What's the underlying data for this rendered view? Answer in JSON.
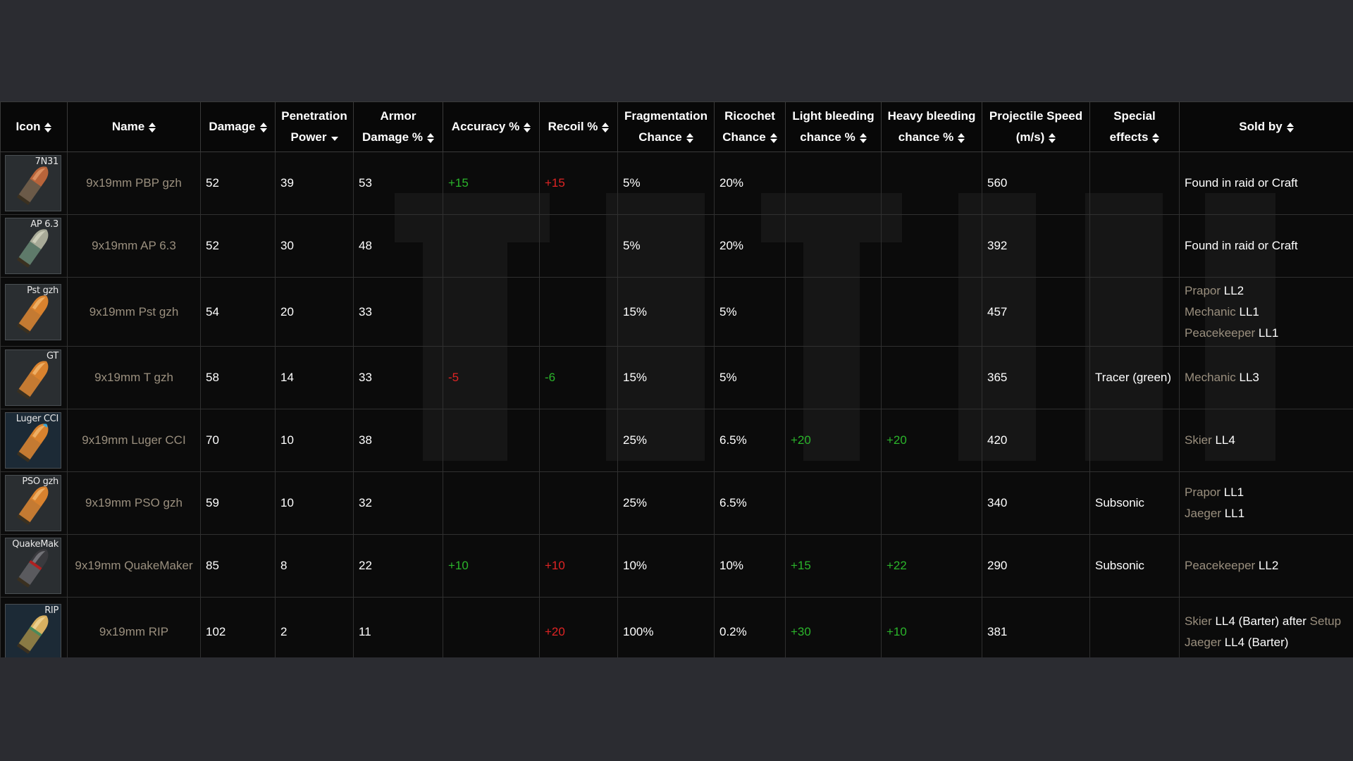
{
  "headers": [
    {
      "line1": "Icon",
      "line2": "",
      "sort": "both"
    },
    {
      "line1": "Name",
      "line2": "",
      "sort": "both"
    },
    {
      "line1": "Damage",
      "line2": "",
      "sort": "both"
    },
    {
      "line1": "Penetration",
      "line2": "Power",
      "sort": "down"
    },
    {
      "line1": "Armor",
      "line2": "Damage %",
      "sort": "both"
    },
    {
      "line1": "Accuracy %",
      "line2": "",
      "sort": "both"
    },
    {
      "line1": "Recoil %",
      "line2": "",
      "sort": "both"
    },
    {
      "line1": "Fragmentation",
      "line2": "Chance",
      "sort": "both"
    },
    {
      "line1": "Ricochet",
      "line2": "Chance",
      "sort": "both"
    },
    {
      "line1": "Light bleeding",
      "line2": "chance %",
      "sort": "both"
    },
    {
      "line1": "Heavy bleeding",
      "line2": "chance %",
      "sort": "both"
    },
    {
      "line1": "Projectile Speed",
      "line2": "(m/s)",
      "sort": "both"
    },
    {
      "line1": "Special",
      "line2": "effects",
      "sort": "both"
    },
    {
      "line1": "Sold by",
      "line2": "",
      "sort": "both"
    }
  ],
  "rows": [
    {
      "icon": {
        "tag": "7N31",
        "bullet": "copper",
        "tint": "dark"
      },
      "name": "9x19mm PBP gzh",
      "damage": "52",
      "penetration": "39",
      "armor_damage": "53",
      "accuracy": "+15",
      "accuracy_sign": "pos",
      "recoil": "+15",
      "recoil_sign": "neg",
      "fragmentation": "5%",
      "ricochet": "20%",
      "light_bleed": "",
      "heavy_bleed": "",
      "speed": "560",
      "special": "",
      "sold_by": [
        {
          "vendor": "",
          "level": "Found in raid or Craft"
        }
      ]
    },
    {
      "icon": {
        "tag": "AP 6.3",
        "bullet": "silver",
        "tint": "dark"
      },
      "name": "9x19mm AP 6.3",
      "damage": "52",
      "penetration": "30",
      "armor_damage": "48",
      "accuracy": "",
      "accuracy_sign": "",
      "recoil": "",
      "recoil_sign": "",
      "fragmentation": "5%",
      "ricochet": "20%",
      "light_bleed": "",
      "heavy_bleed": "",
      "speed": "392",
      "special": "",
      "sold_by": [
        {
          "vendor": "",
          "level": "Found in raid or Craft"
        }
      ]
    },
    {
      "icon": {
        "tag": "Pst gzh",
        "bullet": "orange",
        "tint": "dark"
      },
      "name": "9x19mm Pst gzh",
      "damage": "54",
      "penetration": "20",
      "armor_damage": "33",
      "accuracy": "",
      "accuracy_sign": "",
      "recoil": "",
      "recoil_sign": "",
      "fragmentation": "15%",
      "ricochet": "5%",
      "light_bleed": "",
      "heavy_bleed": "",
      "speed": "457",
      "special": "",
      "sold_by": [
        {
          "vendor": "Prapor",
          "level": "LL2"
        },
        {
          "vendor": "Mechanic",
          "level": "LL1"
        },
        {
          "vendor": "Peacekeeper",
          "level": "LL1"
        }
      ]
    },
    {
      "icon": {
        "tag": "GT",
        "bullet": "orange",
        "tint": "dark"
      },
      "name": "9x19mm T gzh",
      "damage": "58",
      "penetration": "14",
      "armor_damage": "33",
      "accuracy": "-5",
      "accuracy_sign": "neg",
      "recoil": "-6",
      "recoil_sign": "pos",
      "fragmentation": "15%",
      "ricochet": "5%",
      "light_bleed": "",
      "heavy_bleed": "",
      "speed": "365",
      "special": "Tracer (green)",
      "sold_by": [
        {
          "vendor": "Mechanic",
          "level": "LL3"
        }
      ]
    },
    {
      "icon": {
        "tag": "Luger CCI",
        "bullet": "orange-blue",
        "tint": "blue"
      },
      "name": "9x19mm Luger CCI",
      "damage": "70",
      "penetration": "10",
      "armor_damage": "38",
      "accuracy": "",
      "accuracy_sign": "",
      "recoil": "",
      "recoil_sign": "",
      "fragmentation": "25%",
      "ricochet": "6.5%",
      "light_bleed": "+20",
      "heavy_bleed": "+20",
      "speed": "420",
      "special": "",
      "sold_by": [
        {
          "vendor": "Skier",
          "level": "LL4"
        }
      ]
    },
    {
      "icon": {
        "tag": "PSO gzh",
        "bullet": "orange",
        "tint": "dark"
      },
      "name": "9x19mm PSO gzh",
      "damage": "59",
      "penetration": "10",
      "armor_damage": "32",
      "accuracy": "",
      "accuracy_sign": "",
      "recoil": "",
      "recoil_sign": "",
      "fragmentation": "25%",
      "ricochet": "6.5%",
      "light_bleed": "",
      "heavy_bleed": "",
      "speed": "340",
      "special": "Subsonic",
      "sold_by": [
        {
          "vendor": "Prapor",
          "level": "LL1"
        },
        {
          "vendor": "Jaeger",
          "level": "LL1"
        }
      ]
    },
    {
      "icon": {
        "tag": "QuakeMak",
        "bullet": "black-red",
        "tint": "dark"
      },
      "name": "9x19mm QuakeMaker",
      "damage": "85",
      "penetration": "8",
      "armor_damage": "22",
      "accuracy": "+10",
      "accuracy_sign": "pos",
      "recoil": "+10",
      "recoil_sign": "neg",
      "fragmentation": "10%",
      "ricochet": "10%",
      "light_bleed": "+15",
      "heavy_bleed": "+22",
      "speed": "290",
      "special": "Subsonic",
      "sold_by": [
        {
          "vendor": "Peacekeeper",
          "level": "LL2"
        }
      ]
    },
    {
      "icon": {
        "tag": "RIP",
        "bullet": "gold-green",
        "tint": "blue"
      },
      "name": "9x19mm RIP",
      "damage": "102",
      "penetration": "2",
      "armor_damage": "11",
      "accuracy": "",
      "accuracy_sign": "",
      "recoil": "+20",
      "recoil_sign": "neg",
      "fragmentation": "100%",
      "ricochet": "0.2%",
      "light_bleed": "+30",
      "heavy_bleed": "+10",
      "speed": "381",
      "special": "",
      "sold_by": [
        {
          "vendor": "Skier",
          "level": "LL4 (Barter) after",
          "quest": "Setup"
        },
        {
          "vendor": "Jaeger",
          "level": "LL4 (Barter)"
        }
      ]
    }
  ],
  "colors": {
    "page_bg": "#2b2c31",
    "table_bg": "#0b0b0b",
    "name_text": "#9a8f7e",
    "positive": "#2bb52b",
    "negative": "#e02424"
  }
}
